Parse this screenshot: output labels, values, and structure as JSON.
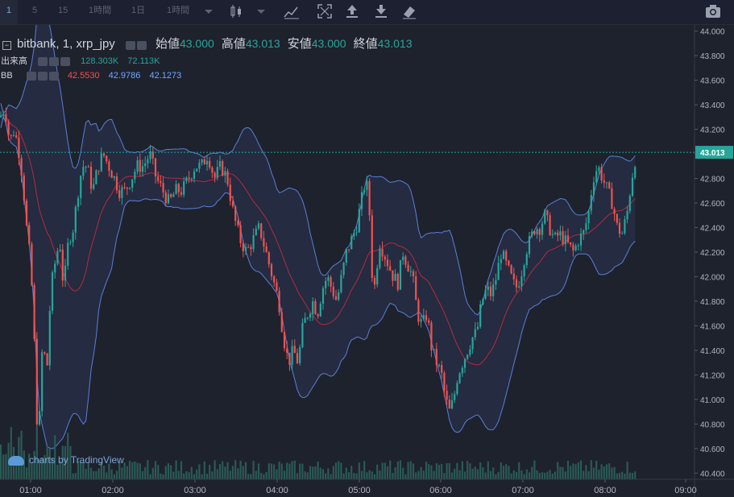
{
  "toolbar": {
    "intervals": [
      "1",
      "5",
      "15",
      "1時間",
      "1日",
      "1時間"
    ],
    "active_interval": "1",
    "icons": [
      "dropdown-caret-icon",
      "candlestick-icon",
      "dropdown-caret-icon",
      "indicators-icon",
      "fullscreen-icon",
      "upload-icon",
      "download-icon",
      "eraser-icon",
      "camera-icon"
    ]
  },
  "legend": {
    "symbol": "bitbank, 1, xrp_jpy",
    "open_label": "始値",
    "open": "43.000",
    "high_label": "高値",
    "high": "43.013",
    "low_label": "安値",
    "low": "43.000",
    "close_label": "終値",
    "close": "43.013",
    "volume_label": "出来高",
    "volume_1": "128.303K",
    "volume_2": "72.113K",
    "bb_label": "BB",
    "bb_basis": "42.5530",
    "bb_upper": "42.9786",
    "bb_lower": "42.1273"
  },
  "watermark": "charts by TradingView",
  "chart_data": {
    "type": "candlestick",
    "colors": {
      "up": "#26a69a",
      "down": "#ef5350",
      "basis": "#b22c43",
      "band": "#5b7fd6",
      "volume": "#2a5a55"
    },
    "ylim": [
      40.35,
      44.05
    ],
    "y_ticks": [
      "44.000",
      "43.800",
      "43.600",
      "43.400",
      "43.200",
      "43.000",
      "42.800",
      "42.600",
      "42.400",
      "42.200",
      "42.000",
      "41.800",
      "41.600",
      "41.400",
      "41.200",
      "41.000",
      "40.800",
      "40.600",
      "40.400"
    ],
    "x_ticks": [
      "01:00",
      "02:00",
      "03:00",
      "04:00",
      "05:00",
      "06:00",
      "07:00",
      "08:00",
      "09:00"
    ],
    "last_price": "43.013",
    "close_path": [
      [
        0,
        43.3
      ],
      [
        6,
        43.38
      ],
      [
        12,
        43.1
      ],
      [
        18,
        43.2
      ],
      [
        24,
        43.0
      ],
      [
        28,
        42.8
      ],
      [
        33,
        42.4
      ],
      [
        38,
        42.1
      ],
      [
        42,
        41.6
      ],
      [
        45,
        40.9
      ],
      [
        48,
        40.7
      ],
      [
        53,
        41.5
      ],
      [
        58,
        41.2
      ],
      [
        63,
        41.9
      ],
      [
        68,
        42.1
      ],
      [
        74,
        42.3
      ],
      [
        79,
        41.9
      ],
      [
        85,
        42.3
      ],
      [
        91,
        42.4
      ],
      [
        97,
        42.7
      ],
      [
        102,
        42.9
      ],
      [
        108,
        42.9
      ],
      [
        115,
        42.7
      ],
      [
        122,
        42.9
      ],
      [
        128,
        43.0
      ],
      [
        135,
        42.9
      ],
      [
        142,
        42.8
      ],
      [
        148,
        42.7
      ],
      [
        155,
        42.7
      ],
      [
        163,
        42.8
      ],
      [
        170,
        42.9
      ],
      [
        178,
        42.9
      ],
      [
        186,
        43.0
      ],
      [
        194,
        42.8
      ],
      [
        202,
        42.7
      ],
      [
        210,
        42.6
      ],
      [
        218,
        42.7
      ],
      [
        226,
        42.7
      ],
      [
        234,
        42.8
      ],
      [
        242,
        42.9
      ],
      [
        250,
        42.9
      ],
      [
        258,
        43.0
      ],
      [
        266,
        42.8
      ],
      [
        274,
        42.9
      ],
      [
        282,
        42.8
      ],
      [
        290,
        42.5
      ],
      [
        298,
        42.3
      ],
      [
        306,
        42.2
      ],
      [
        314,
        42.3
      ],
      [
        322,
        42.4
      ],
      [
        330,
        42.2
      ],
      [
        338,
        42.0
      ],
      [
        346,
        41.8
      ],
      [
        352,
        41.5
      ],
      [
        358,
        41.3
      ],
      [
        364,
        41.4
      ],
      [
        370,
        41.3
      ],
      [
        376,
        41.6
      ],
      [
        382,
        41.7
      ],
      [
        388,
        41.8
      ],
      [
        394,
        41.7
      ],
      [
        400,
        41.9
      ],
      [
        406,
        42.0
      ],
      [
        412,
        41.9
      ],
      [
        418,
        41.8
      ],
      [
        424,
        42.0
      ],
      [
        430,
        42.2
      ],
      [
        436,
        42.3
      ],
      [
        442,
        42.4
      ],
      [
        448,
        42.6
      ],
      [
        454,
        42.8
      ],
      [
        458,
        42.6
      ],
      [
        462,
        42.0
      ],
      [
        466,
        41.9
      ],
      [
        470,
        42.3
      ],
      [
        476,
        42.2
      ],
      [
        482,
        42.1
      ],
      [
        488,
        42.0
      ],
      [
        494,
        41.95
      ],
      [
        500,
        42.2
      ],
      [
        506,
        42.1
      ],
      [
        512,
        42.0
      ],
      [
        518,
        41.7
      ],
      [
        524,
        41.6
      ],
      [
        530,
        41.7
      ],
      [
        536,
        41.4
      ],
      [
        542,
        41.3
      ],
      [
        548,
        41.2
      ],
      [
        553,
        41.0
      ],
      [
        558,
        40.9
      ],
      [
        563,
        41.0
      ],
      [
        568,
        41.2
      ],
      [
        574,
        41.3
      ],
      [
        580,
        41.4
      ],
      [
        586,
        41.5
      ],
      [
        592,
        41.55
      ],
      [
        598,
        41.8
      ],
      [
        604,
        41.9
      ],
      [
        610,
        41.85
      ],
      [
        616,
        42.0
      ],
      [
        622,
        42.2
      ],
      [
        628,
        42.1
      ],
      [
        634,
        42.0
      ],
      [
        640,
        41.9
      ],
      [
        646,
        42.0
      ],
      [
        652,
        42.2
      ],
      [
        658,
        42.3
      ],
      [
        664,
        42.4
      ],
      [
        670,
        42.4
      ],
      [
        676,
        42.5
      ],
      [
        682,
        42.4
      ],
      [
        688,
        42.3
      ],
      [
        694,
        42.35
      ],
      [
        700,
        42.3
      ],
      [
        706,
        42.25
      ],
      [
        712,
        42.2
      ],
      [
        718,
        42.3
      ],
      [
        724,
        42.35
      ],
      [
        730,
        42.5
      ],
      [
        736,
        42.8
      ],
      [
        742,
        42.9
      ],
      [
        748,
        42.8
      ],
      [
        754,
        42.7
      ],
      [
        760,
        42.6
      ],
      [
        766,
        42.4
      ],
      [
        772,
        42.35
      ],
      [
        778,
        42.5
      ],
      [
        784,
        42.8
      ],
      [
        790,
        43.013
      ]
    ]
  }
}
